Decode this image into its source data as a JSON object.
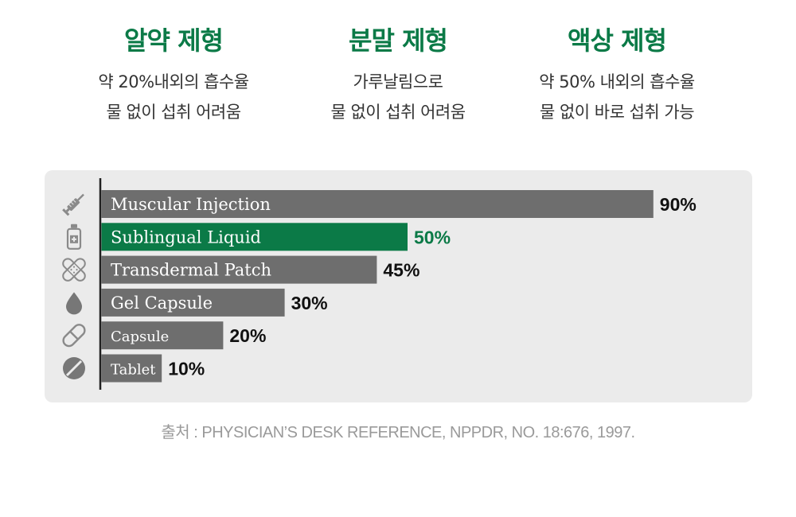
{
  "columns": [
    {
      "title": "알약 제형",
      "lines": [
        "약 20%내외의 흡수율",
        "물 없이 섭취 어려움"
      ]
    },
    {
      "title": "분말 제형",
      "lines": [
        "가루날림으로",
        "물 없이 섭취 어려움"
      ]
    },
    {
      "title": "액상 제형",
      "lines": [
        "약 50% 내외의 흡수율",
        "물 없이 바로 섭취 가능"
      ]
    }
  ],
  "chart_data": {
    "type": "bar",
    "orientation": "horizontal",
    "categories": [
      "Muscular Injection",
      "Sublingual Liquid",
      "Transdermal Patch",
      "Gel Capsule",
      "Capsule",
      "Tablet"
    ],
    "values": [
      90,
      50,
      45,
      30,
      20,
      10
    ],
    "value_labels": [
      "90%",
      "50%",
      "45%",
      "30%",
      "20%",
      "10%"
    ],
    "icons": [
      "syringe-icon",
      "liquid-bottle-icon",
      "bandage-patch-icon",
      "drop-icon",
      "capsule-icon",
      "tablet-icon"
    ],
    "bar_color": "#6e6e6e",
    "highlight_index": 1,
    "highlight_color": "#0b7a47",
    "value_max": 100,
    "title": "",
    "xlabel": "",
    "ylabel": ""
  },
  "source": "출처 : PHYSICIAN’S DESK REFERENCE, NPPDR, NO. 18:676, 1997."
}
